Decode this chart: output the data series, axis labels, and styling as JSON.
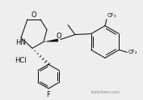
{
  "background_color": "#eeeeee",
  "text_color": "#111111",
  "bond_color": "#111111",
  "label_O_ring": "O",
  "label_NH": "HN",
  "label_O_ether": "O",
  "label_CF3_top": "CF₃",
  "label_CF3_bot": "CF₂",
  "label_F": "F",
  "label_HCl": "HCl",
  "watermark": "lookchem.com",
  "lw": 0.75
}
